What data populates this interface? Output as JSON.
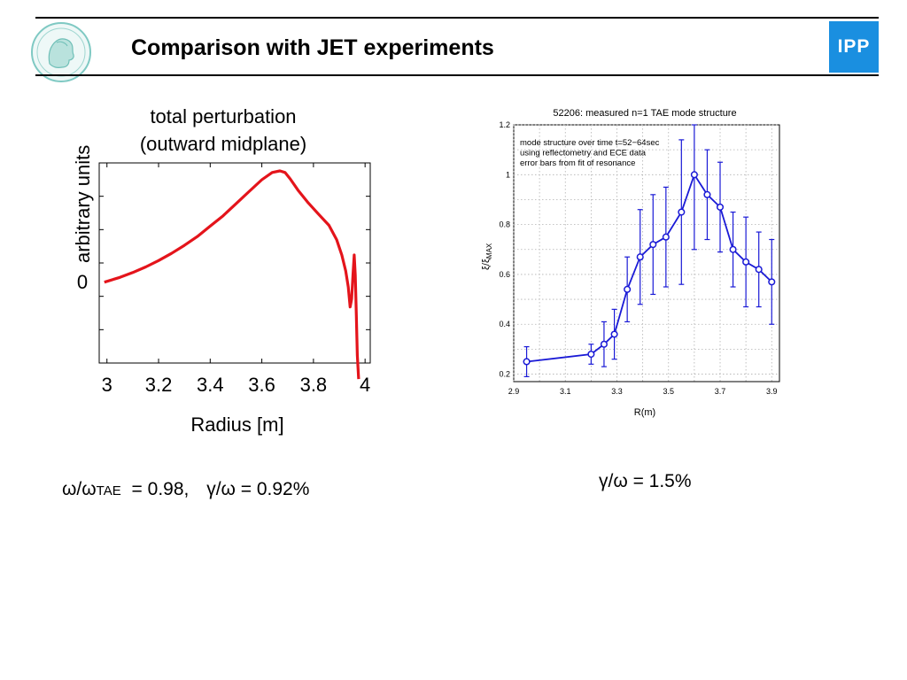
{
  "slide": {
    "title": "Comparison with JET experiments",
    "logo_text": "IPP",
    "left_formula": {
      "omega_prefix": "ω/ω",
      "omega_sub": "TAE",
      "omega_value": "= 0.98,",
      "gamma": "γ/ω = 0.92%"
    },
    "right_formula": "γ/ω = 1.5%"
  },
  "chart_data": [
    {
      "type": "line",
      "title": "total perturbation",
      "subtitle": "(outward midplane)",
      "xlabel": "Radius [m]",
      "ylabel": "arbitrary units",
      "ytick_label": "0",
      "xlim": [
        2.97,
        4.02
      ],
      "x_ticks": [
        3,
        3.2,
        3.4,
        3.6,
        3.8,
        4
      ],
      "x_tick_labels": [
        "3",
        "3.2",
        "3.4",
        "3.6",
        "3.8",
        "4"
      ],
      "ylim": [
        -1.0,
        1.5
      ],
      "color": "#e4141b",
      "series": [
        {
          "x": [
            2.99,
            3.05,
            3.1,
            3.15,
            3.2,
            3.25,
            3.3,
            3.35,
            3.4,
            3.45,
            3.5,
            3.55,
            3.6,
            3.64,
            3.67,
            3.69,
            3.71,
            3.74,
            3.78,
            3.82,
            3.86,
            3.89,
            3.91,
            3.925,
            3.935,
            3.942,
            3.948,
            3.953,
            3.958,
            3.962,
            3.966,
            3.97,
            3.975
          ],
          "y": [
            0.01,
            0.07,
            0.13,
            0.2,
            0.28,
            0.37,
            0.47,
            0.58,
            0.71,
            0.84,
            0.99,
            1.14,
            1.29,
            1.38,
            1.4,
            1.38,
            1.3,
            1.16,
            1.0,
            0.86,
            0.72,
            0.54,
            0.35,
            0.15,
            -0.05,
            -0.3,
            -0.2,
            0.1,
            0.35,
            0.1,
            -0.4,
            -0.9,
            -1.2
          ]
        }
      ]
    },
    {
      "type": "line",
      "title": "52206: measured n=1 TAE mode structure",
      "xlabel": "R(m)",
      "ylabel": "ξ/ξ_MAX",
      "annotation": [
        "mode structure over time t=52−64sec",
        "using reflectometry and ECE data",
        "error bars from fit of resonance"
      ],
      "xlim": [
        2.9,
        3.93
      ],
      "ylim": [
        0.17,
        1.2
      ],
      "x_tick_labels": [
        "2.9",
        "3.1",
        "3.3",
        "3.5",
        "3.7",
        "3.9"
      ],
      "y_tick_labels": [
        "0.2",
        "0.4",
        "0.6",
        "0.8",
        "1",
        "1.2"
      ],
      "grid": true,
      "color": "#1a1ad6",
      "series": [
        {
          "x": [
            2.95,
            3.2,
            3.25,
            3.29,
            3.34,
            3.39,
            3.44,
            3.49,
            3.55,
            3.6,
            3.65,
            3.7,
            3.75,
            3.8,
            3.85,
            3.9
          ],
          "y": [
            0.25,
            0.28,
            0.32,
            0.36,
            0.54,
            0.67,
            0.72,
            0.75,
            0.85,
            1.0,
            0.92,
            0.87,
            0.7,
            0.65,
            0.62,
            0.57
          ],
          "err": [
            0.06,
            0.04,
            0.09,
            0.1,
            0.13,
            0.19,
            0.2,
            0.2,
            0.29,
            0.3,
            0.18,
            0.18,
            0.15,
            0.18,
            0.15,
            0.17
          ]
        }
      ]
    }
  ]
}
